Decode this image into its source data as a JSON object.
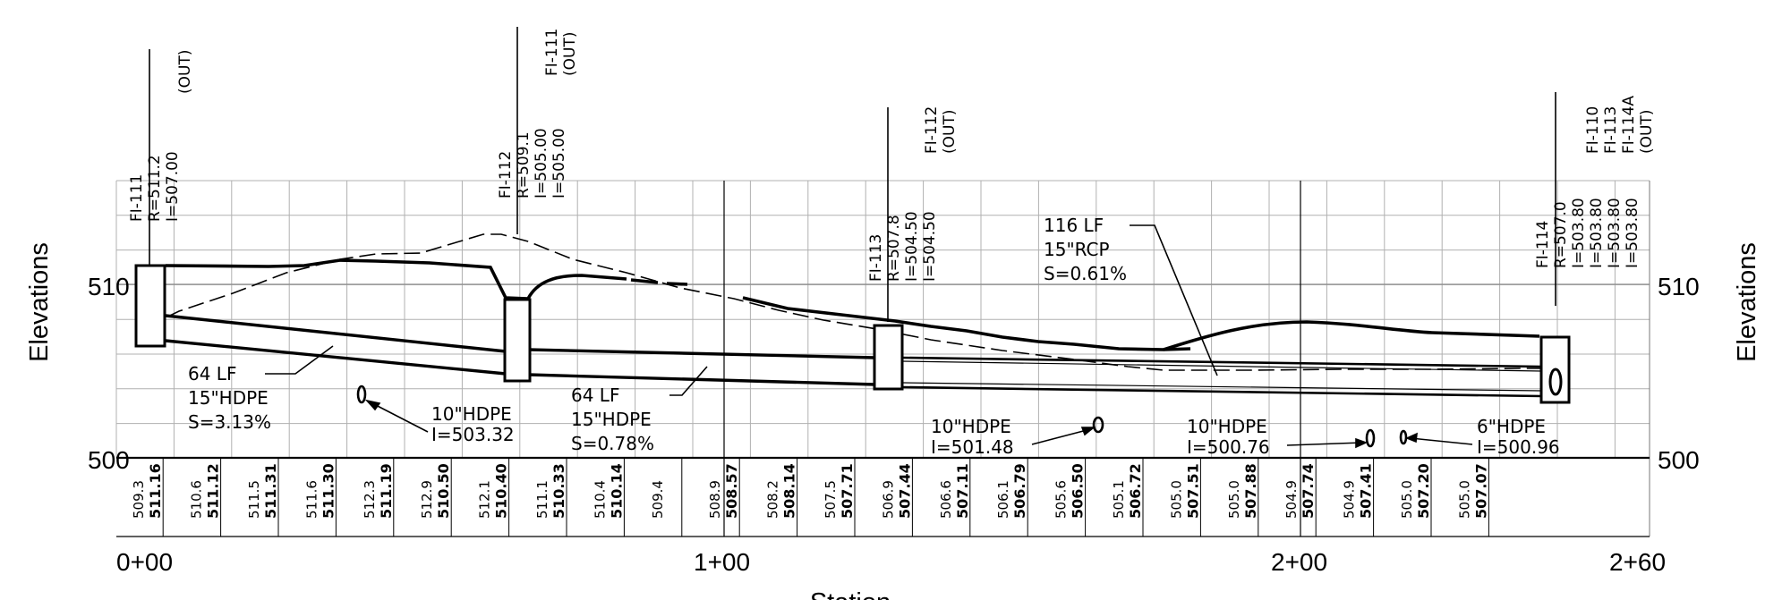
{
  "axes": {
    "y_title": "Elevations",
    "x_title": "Station",
    "elev_labels": [
      "510",
      "500"
    ],
    "station_labels": [
      "0+00",
      "1+00",
      "2+00",
      "2+60"
    ]
  },
  "structures": [
    {
      "name": "FI-111",
      "lines": [
        "FI-111",
        "R=511.2",
        "I=507.00"
      ],
      "out_lines": [
        "(OUT)"
      ]
    },
    {
      "name": "FI-112",
      "lines": [
        "FI-112",
        "R=509.1",
        "I=505.00",
        "I=505.00"
      ],
      "out_lines": [
        "FI-111",
        "(OUT)"
      ]
    },
    {
      "name": "FI-113",
      "lines": [
        "FI-113",
        "R=507.8",
        "I=504.50",
        "I=504.50"
      ],
      "out_lines": [
        "FI-112",
        "(OUT)"
      ]
    },
    {
      "name": "FI-114",
      "lines": [
        "FI-114",
        "R=507.0",
        "I=503.80",
        "I=503.80",
        "I=503.80",
        "I=503.80"
      ],
      "out_lines": [
        "FI-110",
        "FI-113",
        "FI-114A",
        "(OUT)"
      ]
    }
  ],
  "pipe_labels": [
    {
      "lines": [
        "64  LF",
        "15\"HDPE",
        "S=3.13%"
      ]
    },
    {
      "lines": [
        "64  LF",
        "15\"HDPE",
        "S=0.78%"
      ]
    },
    {
      "lines": [
        "116  LF",
        "15\"RCP",
        "S=0.61%"
      ]
    }
  ],
  "crossings": [
    {
      "lines": [
        "10\"HDPE",
        "I=503.32"
      ]
    },
    {
      "lines": [
        "10\"HDPE",
        "I=501.48"
      ]
    },
    {
      "lines": [
        "10\"HDPE",
        "I=500.76"
      ]
    },
    {
      "lines": [
        "6\"HDPE",
        "I=500.96"
      ]
    }
  ],
  "elevation_table": [
    {
      "existing": "509.3",
      "proposed": "511.16"
    },
    {
      "existing": "510.6",
      "proposed": "511.12"
    },
    {
      "existing": "511.5",
      "proposed": "511.31"
    },
    {
      "existing": "511.6",
      "proposed": "511.30"
    },
    {
      "existing": "512.3",
      "proposed": "511.19"
    },
    {
      "existing": "512.9",
      "proposed": "510.50"
    },
    {
      "existing": "512.1",
      "proposed": "510.40"
    },
    {
      "existing": "511.1",
      "proposed": "510.33"
    },
    {
      "existing": "510.4",
      "proposed": "510.14"
    },
    {
      "existing": "509.4",
      "proposed": ""
    },
    {
      "existing": "508.9",
      "proposed": "508.57"
    },
    {
      "existing": "508.2",
      "proposed": "508.14"
    },
    {
      "existing": "507.5",
      "proposed": "507.71"
    },
    {
      "existing": "506.9",
      "proposed": "507.44"
    },
    {
      "existing": "506.6",
      "proposed": "507.11"
    },
    {
      "existing": "506.1",
      "proposed": "506.79"
    },
    {
      "existing": "505.6",
      "proposed": "506.50"
    },
    {
      "existing": "505.1",
      "proposed": "506.72"
    },
    {
      "existing": "505.0",
      "proposed": "507.51"
    },
    {
      "existing": "505.0",
      "proposed": "507.88"
    },
    {
      "existing": "504.9",
      "proposed": "507.74"
    },
    {
      "existing": "504.9",
      "proposed": "507.41"
    },
    {
      "existing": "505.0",
      "proposed": "507.20"
    },
    {
      "existing": "505.0",
      "proposed": "507.07"
    }
  ]
}
